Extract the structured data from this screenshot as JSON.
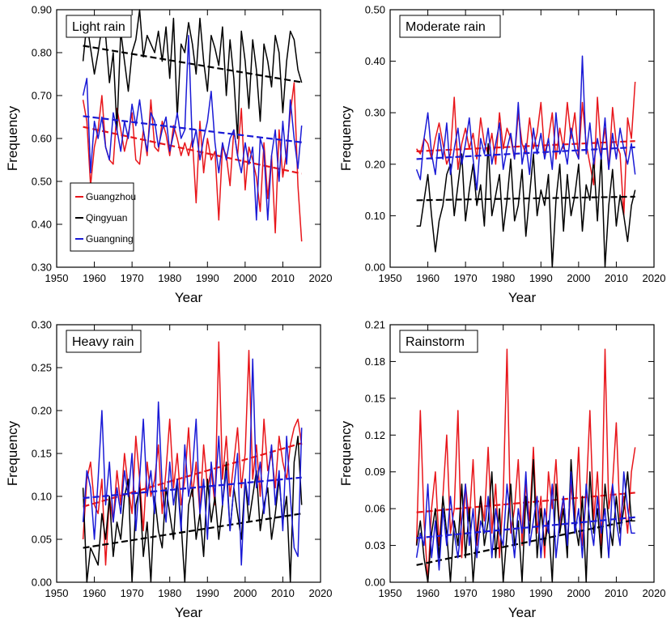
{
  "colors": {
    "Guangzhou": "#e8161b",
    "Qingyuan": "#000000",
    "Guangning": "#1a1ad6"
  },
  "legend": {
    "items": [
      "Guangzhou",
      "Qingyuan",
      "Guangning"
    ]
  },
  "chart_data": [
    {
      "type": "line",
      "title": "Light rain",
      "xlabel": "Year",
      "ylabel": "Frequency",
      "xlim": [
        1950,
        2020
      ],
      "ylim": [
        0.3,
        0.9
      ],
      "xticks": [
        "1950",
        "1960",
        "1970",
        "1980",
        "1990",
        "2000",
        "2010",
        "2020"
      ],
      "yticks": [
        "0.30",
        "0.40",
        "0.50",
        "0.60",
        "0.70",
        "0.80",
        "0.90"
      ],
      "years": [
        1957,
        2015
      ],
      "series": [
        {
          "name": "Guangzhou",
          "values": [
            0.69,
            0.64,
            0.49,
            0.58,
            0.62,
            0.7,
            0.58,
            0.55,
            0.54,
            0.67,
            0.62,
            0.57,
            0.61,
            0.66,
            0.55,
            0.54,
            0.62,
            0.56,
            0.69,
            0.58,
            0.57,
            0.64,
            0.61,
            0.56,
            0.63,
            0.6,
            0.56,
            0.59,
            0.56,
            0.6,
            0.45,
            0.64,
            0.52,
            0.6,
            0.55,
            0.57,
            0.41,
            0.58,
            0.56,
            0.49,
            0.62,
            0.56,
            0.67,
            0.48,
            0.58,
            0.55,
            0.51,
            0.43,
            0.59,
            0.46,
            0.56,
            0.38,
            0.62,
            0.51,
            0.57,
            0.66,
            0.73,
            0.49,
            0.36
          ],
          "trend": [
            0.627,
            0.518
          ]
        },
        {
          "name": "Qingyuan",
          "values": [
            0.78,
            0.87,
            0.81,
            0.75,
            0.8,
            0.86,
            0.84,
            0.73,
            0.8,
            0.62,
            0.85,
            0.78,
            0.71,
            0.8,
            0.83,
            0.9,
            0.79,
            0.84,
            0.82,
            0.8,
            0.85,
            0.78,
            0.86,
            0.74,
            0.88,
            0.65,
            0.82,
            0.8,
            0.87,
            0.82,
            0.75,
            0.88,
            0.78,
            0.71,
            0.84,
            0.81,
            0.77,
            0.86,
            0.7,
            0.83,
            0.74,
            0.6,
            0.85,
            0.78,
            0.67,
            0.83,
            0.76,
            0.64,
            0.82,
            0.78,
            0.72,
            0.84,
            0.8,
            0.66,
            0.78,
            0.85,
            0.83,
            0.76,
            0.73
          ],
          "trend": [
            0.816,
            0.731
          ]
        },
        {
          "name": "Guangning",
          "values": [
            0.7,
            0.74,
            0.52,
            0.64,
            0.6,
            0.65,
            0.58,
            0.55,
            0.66,
            0.62,
            0.57,
            0.64,
            0.6,
            0.68,
            0.63,
            0.69,
            0.62,
            0.57,
            0.66,
            0.64,
            0.58,
            0.62,
            0.65,
            0.57,
            0.61,
            0.66,
            0.6,
            0.62,
            0.84,
            0.58,
            0.62,
            0.55,
            0.6,
            0.64,
            0.71,
            0.59,
            0.52,
            0.59,
            0.55,
            0.6,
            0.62,
            0.56,
            0.52,
            0.59,
            0.54,
            0.58,
            0.41,
            0.6,
            0.57,
            0.41,
            0.56,
            0.62,
            0.5,
            0.64,
            0.54,
            0.69,
            0.6,
            0.53,
            0.63
          ],
          "trend": [
            0.652,
            0.591
          ]
        }
      ]
    },
    {
      "type": "line",
      "title": "Moderate rain",
      "xlabel": "Year",
      "ylabel": "Frequency",
      "xlim": [
        1950,
        2020
      ],
      "ylim": [
        0.0,
        0.5
      ],
      "xticks": [
        "1950",
        "1960",
        "1970",
        "1980",
        "1990",
        "2000",
        "2010",
        "2020"
      ],
      "yticks": [
        "0.00",
        "0.10",
        "0.20",
        "0.30",
        "0.40",
        "0.50"
      ],
      "years": [
        1957,
        2015
      ],
      "series": [
        {
          "name": "Guangzhou",
          "values": [
            0.23,
            0.22,
            0.25,
            0.24,
            0.21,
            0.25,
            0.28,
            0.24,
            0.2,
            0.22,
            0.33,
            0.19,
            0.24,
            0.27,
            0.23,
            0.26,
            0.21,
            0.29,
            0.24,
            0.22,
            0.26,
            0.2,
            0.3,
            0.23,
            0.27,
            0.25,
            0.21,
            0.3,
            0.24,
            0.22,
            0.29,
            0.23,
            0.26,
            0.32,
            0.22,
            0.25,
            0.3,
            0.21,
            0.27,
            0.23,
            0.32,
            0.25,
            0.3,
            0.21,
            0.32,
            0.24,
            0.2,
            0.16,
            0.33,
            0.22,
            0.27,
            0.19,
            0.31,
            0.24,
            0.22,
            0.1,
            0.29,
            0.25,
            0.36
          ],
          "trend": [
            0.225,
            0.245
          ]
        },
        {
          "name": "Qingyuan",
          "values": [
            0.08,
            0.08,
            0.13,
            0.18,
            0.1,
            0.03,
            0.09,
            0.12,
            0.18,
            0.2,
            0.1,
            0.16,
            0.22,
            0.09,
            0.15,
            0.2,
            0.12,
            0.16,
            0.08,
            0.24,
            0.1,
            0.14,
            0.18,
            0.07,
            0.13,
            0.21,
            0.09,
            0.12,
            0.19,
            0.06,
            0.14,
            0.22,
            0.1,
            0.15,
            0.12,
            0.18,
            0.0,
            0.13,
            0.2,
            0.07,
            0.18,
            0.1,
            0.14,
            0.2,
            0.07,
            0.16,
            0.13,
            0.21,
            0.09,
            0.22,
            0.0,
            0.12,
            0.19,
            0.08,
            0.14,
            0.1,
            0.05,
            0.12,
            0.15
          ],
          "trend": [
            0.13,
            0.137
          ]
        },
        {
          "name": "Guangning",
          "values": [
            0.19,
            0.17,
            0.25,
            0.3,
            0.22,
            0.18,
            0.26,
            0.21,
            0.28,
            0.18,
            0.23,
            0.27,
            0.2,
            0.24,
            0.29,
            0.21,
            0.15,
            0.25,
            0.22,
            0.27,
            0.2,
            0.24,
            0.28,
            0.19,
            0.23,
            0.26,
            0.21,
            0.32,
            0.2,
            0.24,
            0.18,
            0.27,
            0.22,
            0.26,
            0.21,
            0.25,
            0.19,
            0.3,
            0.22,
            0.24,
            0.2,
            0.27,
            0.23,
            0.21,
            0.41,
            0.22,
            0.28,
            0.2,
            0.25,
            0.21,
            0.29,
            0.19,
            0.26,
            0.21,
            0.27,
            0.23,
            0.2,
            0.24,
            0.18
          ],
          "trend": [
            0.21,
            0.233
          ]
        }
      ]
    },
    {
      "type": "line",
      "title": "Heavy rain",
      "xlabel": "Year",
      "ylabel": "Frequency",
      "xlim": [
        1950,
        2020
      ],
      "ylim": [
        0.0,
        0.3
      ],
      "xticks": [
        "1950",
        "1960",
        "1970",
        "1980",
        "1990",
        "2000",
        "2010",
        "2020"
      ],
      "yticks": [
        "0.00",
        "0.05",
        "0.10",
        "0.15",
        "0.20",
        "0.25",
        "0.30"
      ],
      "years": [
        1957,
        2015
      ],
      "series": [
        {
          "name": "Guangzhou",
          "values": [
            0.05,
            0.12,
            0.14,
            0.09,
            0.08,
            0.12,
            0.02,
            0.1,
            0.07,
            0.13,
            0.09,
            0.15,
            0.11,
            0.08,
            0.17,
            0.12,
            0.06,
            0.14,
            0.1,
            0.12,
            0.16,
            0.08,
            0.13,
            0.19,
            0.11,
            0.15,
            0.09,
            0.12,
            0.18,
            0.1,
            0.14,
            0.08,
            0.16,
            0.11,
            0.13,
            0.09,
            0.28,
            0.12,
            0.17,
            0.1,
            0.14,
            0.18,
            0.11,
            0.15,
            0.27,
            0.12,
            0.16,
            0.1,
            0.19,
            0.13,
            0.15,
            0.11,
            0.17,
            0.14,
            0.12,
            0.16,
            0.18,
            0.19,
            0.16
          ],
          "trend": [
            0.088,
            0.162
          ]
        },
        {
          "name": "Qingyuan",
          "values": [
            0.11,
            0.0,
            0.04,
            0.03,
            0.02,
            0.08,
            0.05,
            0.1,
            0.03,
            0.07,
            0.05,
            0.1,
            0.12,
            0.0,
            0.09,
            0.11,
            0.03,
            0.07,
            0.0,
            0.1,
            0.06,
            0.04,
            0.11,
            0.08,
            0.05,
            0.12,
            0.07,
            0.0,
            0.09,
            0.11,
            0.05,
            0.08,
            0.03,
            0.12,
            0.07,
            0.1,
            0.05,
            0.09,
            0.14,
            0.06,
            0.11,
            0.08,
            0.05,
            0.12,
            0.07,
            0.1,
            0.13,
            0.06,
            0.09,
            0.11,
            0.05,
            0.08,
            0.12,
            0.07,
            0.1,
            0.0,
            0.14,
            0.17,
            0.09
          ],
          "trend": [
            0.04,
            0.08
          ]
        },
        {
          "name": "Guangning",
          "values": [
            0.07,
            0.13,
            0.11,
            0.05,
            0.12,
            0.2,
            0.09,
            0.14,
            0.07,
            0.11,
            0.08,
            0.13,
            0.1,
            0.15,
            0.06,
            0.12,
            0.19,
            0.1,
            0.13,
            0.08,
            0.21,
            0.11,
            0.07,
            0.14,
            0.09,
            0.12,
            0.06,
            0.16,
            0.1,
            0.13,
            0.19,
            0.08,
            0.12,
            0.05,
            0.14,
            0.1,
            0.17,
            0.09,
            0.13,
            0.06,
            0.11,
            0.15,
            0.02,
            0.12,
            0.09,
            0.26,
            0.11,
            0.14,
            0.08,
            0.12,
            0.16,
            0.09,
            0.13,
            0.06,
            0.17,
            0.1,
            0.04,
            0.03,
            0.18
          ],
          "trend": [
            0.098,
            0.122
          ]
        }
      ]
    },
    {
      "type": "line",
      "title": "Rainstorm",
      "xlabel": "Year",
      "ylabel": "Frequency",
      "xlim": [
        1950,
        2020
      ],
      "ylim": [
        0.0,
        0.21
      ],
      "xticks": [
        "1950",
        "1960",
        "1970",
        "1980",
        "1990",
        "2000",
        "2010",
        "2020"
      ],
      "yticks": [
        "0.00",
        "0.03",
        "0.06",
        "0.09",
        "0.12",
        "0.15",
        "0.18",
        "0.21"
      ],
      "years": [
        1957,
        2015
      ],
      "series": [
        {
          "name": "Guangzhou",
          "values": [
            0.03,
            0.14,
            0.05,
            0.0,
            0.06,
            0.09,
            0.03,
            0.07,
            0.12,
            0.04,
            0.06,
            0.14,
            0.02,
            0.08,
            0.05,
            0.1,
            0.03,
            0.07,
            0.05,
            0.11,
            0.04,
            0.08,
            0.02,
            0.07,
            0.19,
            0.04,
            0.06,
            0.1,
            0.03,
            0.08,
            0.05,
            0.11,
            0.04,
            0.07,
            0.02,
            0.09,
            0.06,
            0.1,
            0.04,
            0.07,
            0.03,
            0.08,
            0.05,
            0.11,
            0.03,
            0.07,
            0.14,
            0.05,
            0.09,
            0.03,
            0.19,
            0.06,
            0.08,
            0.13,
            0.05,
            0.07,
            0.04,
            0.09,
            0.11
          ],
          "trend": [
            0.057,
            0.073
          ]
        },
        {
          "name": "Qingyuan",
          "values": [
            0.03,
            0.05,
            0.02,
            0.0,
            0.04,
            0.06,
            0.02,
            0.07,
            0.04,
            0.0,
            0.05,
            0.03,
            0.08,
            0.02,
            0.06,
            0.0,
            0.04,
            0.07,
            0.03,
            0.05,
            0.09,
            0.02,
            0.06,
            0.0,
            0.04,
            0.08,
            0.03,
            0.05,
            0.0,
            0.07,
            0.04,
            0.1,
            0.02,
            0.06,
            0.03,
            0.05,
            0.0,
            0.08,
            0.04,
            0.06,
            0.02,
            0.1,
            0.05,
            0.03,
            0.07,
            0.0,
            0.09,
            0.04,
            0.06,
            0.02,
            0.08,
            0.05,
            0.03,
            0.07,
            0.04,
            0.06,
            0.09,
            0.05,
            0.05
          ],
          "trend": [
            0.014,
            0.051
          ]
        },
        {
          "name": "Guangning",
          "values": [
            0.02,
            0.04,
            0.03,
            0.08,
            0.02,
            0.05,
            0.01,
            0.06,
            0.03,
            0.07,
            0.04,
            0.02,
            0.05,
            0.08,
            0.03,
            0.06,
            0.02,
            0.05,
            0.04,
            0.07,
            0.02,
            0.06,
            0.04,
            0.03,
            0.08,
            0.05,
            0.02,
            0.06,
            0.04,
            0.09,
            0.03,
            0.05,
            0.07,
            0.02,
            0.06,
            0.04,
            0.08,
            0.02,
            0.05,
            0.07,
            0.03,
            0.09,
            0.04,
            0.06,
            0.02,
            0.08,
            0.05,
            0.03,
            0.07,
            0.04,
            0.06,
            0.02,
            0.08,
            0.05,
            0.03,
            0.09,
            0.06,
            0.04,
            0.04
          ],
          "trend": [
            0.036,
            0.053
          ]
        }
      ]
    }
  ]
}
